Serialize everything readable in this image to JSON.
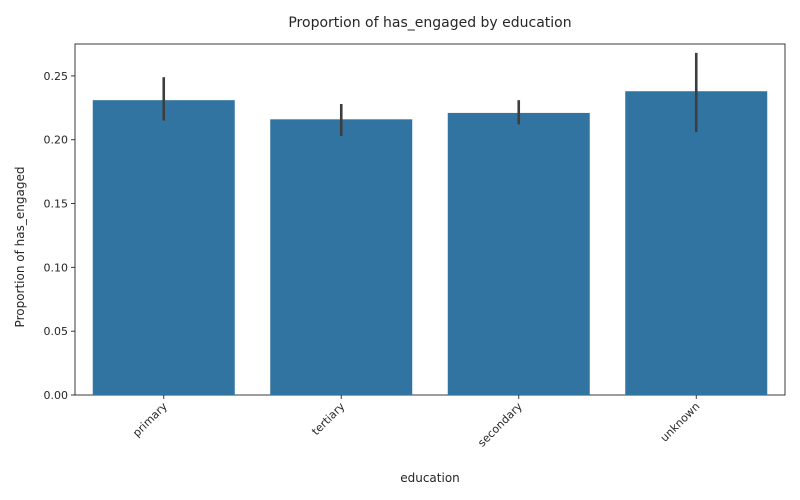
{
  "chart_data": {
    "type": "bar",
    "title": "Proportion of has_engaged by education",
    "xlabel": "education",
    "ylabel": "Proportion of has_engaged",
    "categories": [
      "primary",
      "tertiary",
      "secondary",
      "unknown"
    ],
    "values": [
      0.231,
      0.216,
      0.221,
      0.238
    ],
    "error_low": [
      0.215,
      0.203,
      0.212,
      0.206
    ],
    "error_high": [
      0.249,
      0.228,
      0.231,
      0.268
    ],
    "ylim": [
      0,
      0.275
    ],
    "yticks": [
      0.0,
      0.05,
      0.1,
      0.15,
      0.2,
      0.25
    ],
    "ytick_labels": [
      "0.00",
      "0.05",
      "0.10",
      "0.15",
      "0.20",
      "0.25"
    ],
    "grid": false,
    "colors": {
      "bar": "#3274a1",
      "error": "#3d3d3d",
      "axis": "#262626"
    }
  }
}
